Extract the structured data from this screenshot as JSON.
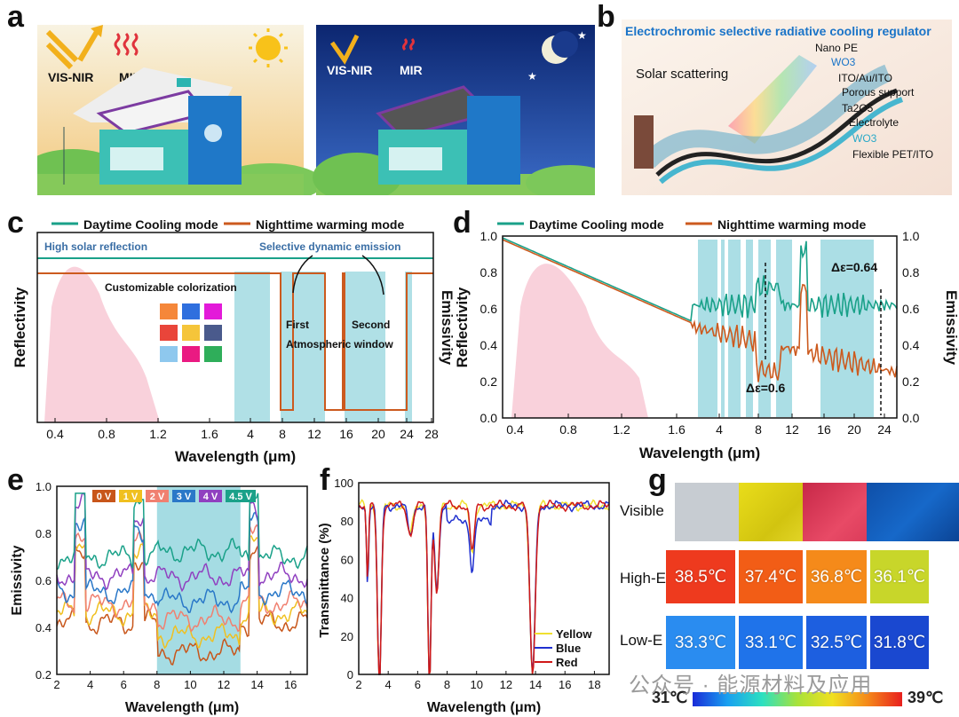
{
  "panel_labels": {
    "a": "a",
    "b": "b",
    "c": "c",
    "d": "d",
    "e": "e",
    "f": "f",
    "g": "g"
  },
  "colors": {
    "teal": "#1aa189",
    "orange": "#cc5a1e",
    "pink": "#f7c6d2",
    "cyan": "#8fd3dc"
  },
  "panel_a": {
    "day": {
      "visnir": "VIS-NIR",
      "mir": "MIR"
    },
    "night": {
      "visnir": "VIS-NIR",
      "mir": "MIR"
    }
  },
  "panel_b": {
    "title": "Electrochromic selective radiative cooling regulator",
    "scatter": "Solar scattering",
    "layers": [
      "Nano PE",
      "WO3",
      "ITO/Au/ITO",
      "Porous support",
      "Ta2O5",
      "Electrolyte",
      "WO3",
      "Flexible PET/ITO"
    ]
  },
  "chart_data": [
    {
      "panel": "c",
      "type": "line",
      "legend": [
        "Daytime Cooling mode",
        "Nighttime warming mode"
      ],
      "annotations": [
        "High solar reflection",
        "Selective dynamic emission",
        "Customizable colorization",
        "First",
        "Second",
        "Atmospheric window"
      ],
      "xlabel": "Wavelength (μm)",
      "ylabel": "Reflectivity",
      "ylabel_right": "Emissivity",
      "xticks": [
        "0.4",
        "0.8",
        "1.2",
        "1.6",
        "4",
        "8",
        "12",
        "16",
        "20",
        "24",
        "28"
      ]
    },
    {
      "panel": "d",
      "type": "line",
      "legend": [
        "Daytime Cooling mode",
        "Nighttime warming mode"
      ],
      "annotations": [
        "Δε=0.64",
        "Δε=0.6"
      ],
      "xlabel": "Wavelength (μm)",
      "ylabel": "Reflectivity",
      "ylabel_right": "Emissivity",
      "xticks": [
        "0.4",
        "0.8",
        "1.2",
        "1.6",
        "4",
        "8",
        "12",
        "16",
        "20",
        "24"
      ],
      "yticks": [
        "0.0",
        "0.2",
        "0.4",
        "0.6",
        "0.8",
        "1.0"
      ],
      "ylim": [
        0,
        1
      ]
    },
    {
      "panel": "e",
      "type": "line",
      "legend": [
        "0 V",
        "1 V",
        "2 V",
        "3 V",
        "4 V",
        "4.5 V"
      ],
      "xlabel": "Wavelength (μm)",
      "ylabel": "Emissivity",
      "xticks": [
        "2",
        "4",
        "6",
        "8",
        "10",
        "12",
        "14",
        "16"
      ],
      "yticks": [
        "0.2",
        "0.4",
        "0.6",
        "0.8",
        "1.0"
      ],
      "ylim": [
        0.2,
        1.0
      ]
    },
    {
      "panel": "f",
      "type": "line",
      "legend": [
        "Yellow",
        "Blue",
        "Red"
      ],
      "xlabel": "Wavelength (μm)",
      "ylabel": "Transmittance (%)",
      "xticks": [
        "2",
        "4",
        "6",
        "8",
        "10",
        "12",
        "14",
        "16",
        "18"
      ],
      "yticks": [
        "0",
        "20",
        "40",
        "60",
        "80",
        "100"
      ],
      "ylim": [
        0,
        100
      ]
    }
  ],
  "panel_g": {
    "rows": [
      "Visible",
      "High-E",
      "Low-E"
    ],
    "high_e": [
      "38.5℃",
      "37.4℃",
      "36.8℃",
      "36.1℃"
    ],
    "low_e": [
      "33.3℃",
      "33.1℃",
      "32.5℃",
      "31.8℃"
    ],
    "scale_min": "31℃",
    "scale_max": "39℃"
  },
  "watermark": "公众号 · 能源材料及应用"
}
